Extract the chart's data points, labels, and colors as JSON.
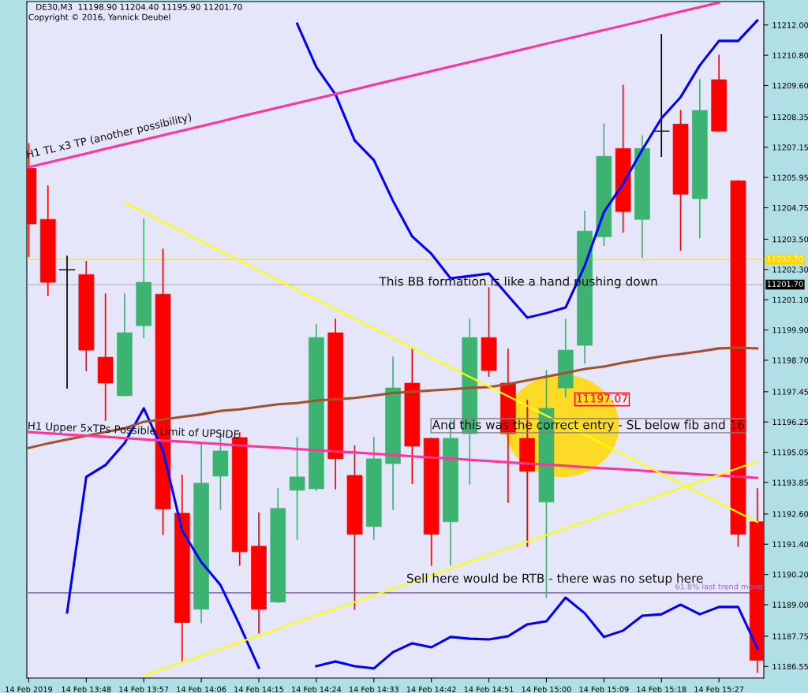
{
  "chart_data": {
    "type": "candlestick",
    "title": "DE30,M3  11198.90 11204.40 11195.90 11201.70",
    "subtitle": "Copyright © 2016, Yannick Deubel",
    "categories": [
      "14 Feb 2019",
      null,
      null,
      "14 Feb 13:48",
      null,
      null,
      "14 Feb 13:57",
      null,
      null,
      "14 Feb 14:06",
      null,
      null,
      "14 Feb 14:15",
      null,
      null,
      "14 Feb 14:24",
      null,
      null,
      "14 Feb 14:33",
      null,
      null,
      "14 Feb 14:42",
      null,
      null,
      "14 Feb 14:51",
      null,
      null,
      "14 Feb 15:00",
      null,
      null,
      "14 Feb 15:09",
      null,
      null,
      "14 Feb 15:18",
      null,
      null,
      "14 Feb 15:27",
      null,
      null
    ],
    "ohlc": [
      [
        11206.32,
        11207.29,
        11202.82,
        11204.11
      ],
      [
        11204.29,
        11205.61,
        11201.29,
        11201.79
      ],
      [
        11202.29,
        11202.82,
        11197.6,
        11202.29
      ],
      [
        11202.1,
        11202.61,
        11198.29,
        11199.1
      ],
      [
        11198.82,
        11201.32,
        11196.32,
        11197.79
      ],
      [
        11197.29,
        11201.32,
        11197.29,
        11199.79
      ],
      [
        11200.07,
        11204.29,
        11199.6,
        11201.79
      ],
      [
        11201.32,
        11203.1,
        11191.79,
        11192.79
      ],
      [
        11192.63,
        11194.13,
        11186.79,
        11188.29
      ],
      [
        11188.82,
        11195.41,
        11188.29,
        11193.82
      ],
      [
        11194.1,
        11195.82,
        11192.79,
        11195.1
      ],
      [
        11195.63,
        11195.82,
        11190.57,
        11191.1
      ],
      [
        11191.32,
        11192.63,
        11187.88,
        11188.82
      ],
      [
        11189.1,
        11193.6,
        11189.1,
        11192.82
      ],
      [
        11193.54,
        11195.63,
        11191.6,
        11194.07
      ],
      [
        11193.6,
        11200.1,
        11193.54,
        11199.6
      ],
      [
        11199.79,
        11200.32,
        11193.6,
        11194.79
      ],
      [
        11194.13,
        11195.29,
        11188.82,
        11191.79
      ],
      [
        11192.1,
        11195.63,
        11191.6,
        11194.79
      ],
      [
        11194.6,
        11198.82,
        11192.79,
        11197.6
      ],
      [
        11197.79,
        11199.13,
        11193.82,
        11195.29
      ],
      [
        11195.6,
        11195.6,
        11190.57,
        11191.79
      ],
      [
        11192.29,
        11196.32,
        11190.57,
        11195.6
      ],
      [
        11195.79,
        11200.32,
        11193.79,
        11199.6
      ],
      [
        11199.6,
        11201.57,
        11198.07,
        11198.29
      ],
      [
        11197.79,
        11199.13,
        11193.07,
        11195.79
      ],
      [
        11195.6,
        11197.1,
        11191.32,
        11194.29
      ],
      [
        11193.07,
        11198.29,
        11189.29,
        11196.79
      ],
      [
        11197.6,
        11200.32,
        11197.26,
        11199.1
      ],
      [
        11199.29,
        11204.6,
        11198.6,
        11203.82
      ],
      [
        11203.6,
        11208.07,
        11203.26,
        11206.79
      ],
      [
        11207.1,
        11209.6,
        11203.79,
        11204.6
      ],
      [
        11204.29,
        11207.6,
        11202.79,
        11207.1
      ],
      [
        11207.79,
        11211.62,
        11206.79,
        11207.79
      ],
      [
        11208.07,
        11208.61,
        11203.07,
        11205.29
      ],
      [
        11205.11,
        11209.83,
        11203.57,
        11208.61
      ],
      [
        11209.83,
        11210.8,
        11207.79,
        11207.79
      ],
      [
        11205.82,
        11205.82,
        11191.32,
        11191.79
      ],
      [
        11192.29,
        11193.6,
        11186.32,
        11186.79
      ]
    ],
    "colors": [
      "#ff0000",
      "#ff0000",
      "#000000",
      "#ff0000",
      "#ff0000",
      "#3cb371",
      "#3cb371",
      "#ff0000",
      "#ff0000",
      "#3cb371",
      "#3cb371",
      "#ff0000",
      "#ff0000",
      "#3cb371",
      "#3cb371",
      "#3cb371",
      "#ff0000",
      "#ff0000",
      "#3cb371",
      "#3cb371",
      "#ff0000",
      "#ff0000",
      "#3cb371",
      "#3cb371",
      "#ff0000",
      "#ff0000",
      "#ff0000",
      "#3cb371",
      "#3cb371",
      "#3cb371",
      "#3cb371",
      "#ff0000",
      "#3cb371",
      "#000000",
      "#ff0000",
      "#3cb371",
      "#ff0000",
      "#ff0000",
      "#ff0000"
    ],
    "series": [
      {
        "type": "line",
        "color": "#0000ff",
        "values": [
          null,
          null,
          null,
          null,
          null,
          null,
          null,
          null,
          null,
          null,
          null,
          null,
          null,
          null,
          11212.05,
          11210.33,
          11209.24,
          11207.42,
          11206.64,
          11205.02,
          11203.61,
          11202.92,
          11201.95,
          11202.04,
          11202.14,
          11201.26,
          11200.39,
          11200.57,
          11200.79,
          11202.45,
          11204.58,
          11205.7,
          11207.05,
          11208.3,
          11209.14,
          11210.4,
          11211.37,
          11211.37,
          11212.18
        ]
      },
      {
        "type": "line",
        "color": "#0000ff",
        "values": [
          null,
          null,
          11188.69,
          11194.07,
          11194.54,
          11195.41,
          11196.79,
          11195.1,
          11191.94,
          11190.69,
          11189.78,
          11188.19,
          11186.5,
          null,
          null,
          11186.56,
          11186.75,
          11186.56,
          11186.47,
          11187.12,
          11187.47,
          11187.31,
          11187.72,
          11187.65,
          11187.62,
          11187.75,
          11188.22,
          11188.34,
          11189.28,
          11188.66,
          11187.72,
          11187.97,
          11188.56,
          11188.62,
          11189.0,
          11188.62,
          11188.91,
          11188.91,
          11187.28
        ]
      },
      {
        "type": "line",
        "color": "#a0522d",
        "values": [
          11195.22,
          11195.4,
          11195.55,
          11195.7,
          11195.85,
          11196.0,
          11196.26,
          11196.35,
          11196.45,
          11196.55,
          11196.69,
          11196.75,
          11196.85,
          11196.95,
          11197.0,
          11197.1,
          11197.15,
          11197.2,
          11197.3,
          11197.4,
          11197.45,
          11197.5,
          11197.55,
          11197.6,
          11197.63,
          11197.75,
          11197.9,
          11198.05,
          11198.2,
          11198.35,
          11198.45,
          11198.6,
          11198.73,
          11198.85,
          11198.95,
          11199.05,
          11199.17,
          11199.2,
          11199.17
        ]
      },
      {
        "type": "line",
        "color": "#ff3399",
        "values": [
          11206.36,
          11206.54,
          11206.72,
          11206.9,
          11207.09,
          11207.27,
          11207.45,
          11207.63,
          11207.81,
          11207.99,
          11208.17,
          11208.36,
          11208.54,
          11208.72,
          11208.9,
          11209.08,
          11209.26,
          11209.44,
          11209.63,
          11209.81,
          11209.99,
          11210.17,
          11210.35,
          11210.53,
          11210.71,
          11210.9,
          11211.08,
          11211.26,
          11211.44,
          11211.62,
          11211.8,
          11211.98,
          11212.16,
          11212.35,
          11212.53,
          11212.71,
          11212.89,
          null,
          null
        ]
      },
      {
        "type": "line",
        "color": "#ff3399",
        "values": [
          11195.85,
          11195.8,
          11195.75,
          11195.71,
          11195.66,
          11195.61,
          11195.56,
          11195.51,
          11195.47,
          11195.42,
          11195.37,
          11195.32,
          11195.27,
          11195.23,
          11195.18,
          11195.13,
          11195.08,
          11195.04,
          11194.99,
          11194.94,
          11194.89,
          11194.84,
          11194.8,
          11194.75,
          11194.7,
          11194.65,
          11194.6,
          11194.56,
          11194.51,
          11194.46,
          11194.41,
          11194.37,
          11194.32,
          11194.27,
          11194.22,
          11194.17,
          11194.13,
          11194.08,
          11194.03
        ]
      },
      {
        "type": "line",
        "color": "#ffff00",
        "values": [
          null,
          null,
          null,
          null,
          null,
          11204.95,
          11204.57,
          11204.18,
          11203.8,
          11203.41,
          11203.03,
          11202.65,
          11202.26,
          11201.88,
          11201.5,
          11201.11,
          11200.73,
          11200.34,
          11199.96,
          11199.58,
          11199.19,
          11198.81,
          11198.42,
          11198.04,
          11197.66,
          11197.27,
          11196.89,
          11196.5,
          11196.12,
          11195.74,
          11195.35,
          11194.97,
          11194.58,
          11194.2,
          11193.82,
          11193.43,
          11193.05,
          11192.66,
          11192.28
        ]
      },
      {
        "type": "line",
        "color": "#ffff00",
        "values": [
          null,
          null,
          null,
          null,
          null,
          null,
          11186.18,
          11186.45,
          11186.71,
          11186.98,
          11187.24,
          11187.51,
          11187.78,
          11188.04,
          11188.31,
          11188.57,
          11188.84,
          11189.1,
          11189.37,
          11189.64,
          11189.9,
          11190.17,
          11190.43,
          11190.7,
          11190.97,
          11191.23,
          11191.5,
          11191.76,
          11192.03,
          11192.3,
          11192.56,
          11192.83,
          11193.09,
          11193.36,
          11193.62,
          11193.89,
          11194.15,
          11194.42,
          11194.69
        ]
      }
    ],
    "ref_lines": [
      {
        "axis": "y",
        "value": 11189.47,
        "label": "61.8% last trend move",
        "color": "#9370db"
      },
      {
        "axis": "y",
        "value": 11202.7,
        "label": "11202.70",
        "color": "#ffd700"
      },
      {
        "axis": "y",
        "value": 11201.7,
        "label": "11201.70",
        "color": "#a9a9a9"
      }
    ],
    "annotations": [
      "H1 TL x3 TP (another possibility)",
      "H1 Upper 5xTPs Possible Limit of UPSIDE",
      "This BB formation is like a hand pushing down",
      "And this was the correct entry - SL below fib and 16",
      "Sell here would be RTB - there was no setup here",
      "11197.07"
    ],
    "ylim": [
      11186.09,
      11212.93
    ],
    "yticks": [
      {
        "value": 11212,
        "label": "11212.00"
      },
      {
        "value": 11210.8,
        "label": "11210.80"
      },
      {
        "value": 11209.6,
        "label": "11209.60"
      },
      {
        "value": 11208.35,
        "label": "11208.35"
      },
      {
        "value": 11207.15,
        "label": "11207.15"
      },
      {
        "value": 11205.95,
        "label": "11205.95"
      },
      {
        "value": 11204.75,
        "label": "11204.75"
      },
      {
        "value": 11203.5,
        "label": "11203.50"
      },
      {
        "value": 11202.3,
        "label": "11202.30"
      },
      {
        "value": 11201.1,
        "label": "11201.10"
      },
      {
        "value": 11199.9,
        "label": "11199.90"
      },
      {
        "value": 11198.7,
        "label": "11198.70"
      },
      {
        "value": 11197.45,
        "label": "11197.45"
      },
      {
        "value": 11196.25,
        "label": "11196.25"
      },
      {
        "value": 11195.05,
        "label": "11195.05"
      },
      {
        "value": 11193.85,
        "label": "11193.85"
      },
      {
        "value": 11192.6,
        "label": "11192.60"
      },
      {
        "value": 11191.4,
        "label": "11191.40"
      },
      {
        "value": 11190.2,
        "label": "11190.20"
      },
      {
        "value": 11189,
        "label": "11189.00"
      },
      {
        "value": 11187.75,
        "label": "11187.75"
      },
      {
        "value": 11186.55,
        "label": "11186.55"
      }
    ]
  }
}
